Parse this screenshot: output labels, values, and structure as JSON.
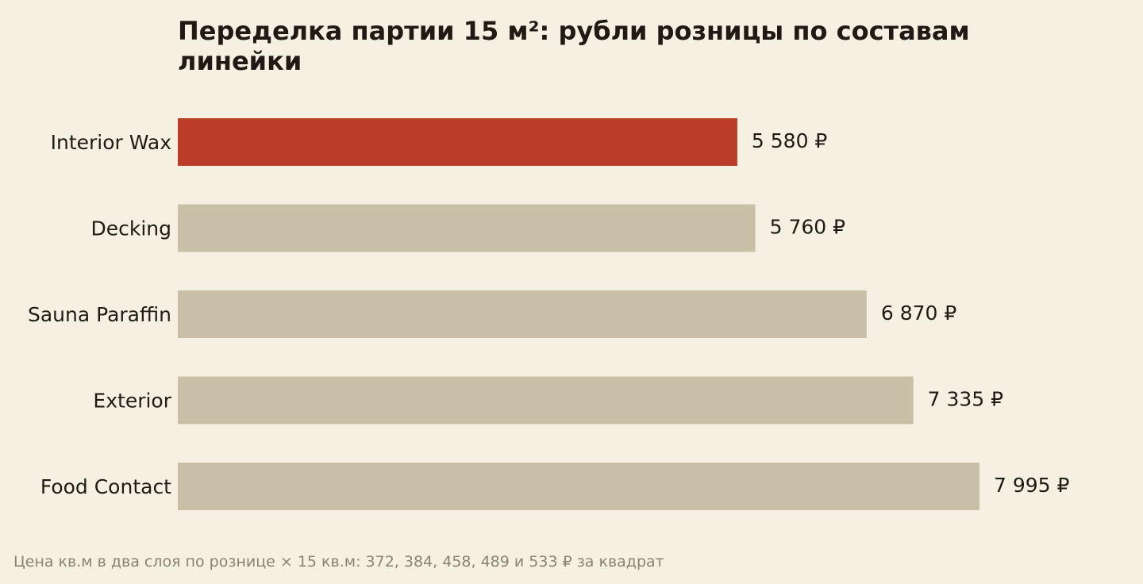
{
  "chart_data": {
    "type": "bar",
    "orientation": "horizontal",
    "title": "Переделка партии 15 м²: рубли розницы по составам линейки",
    "categories": [
      "Interior Wax",
      "Decking",
      "Sauna Paraffin",
      "Exterior",
      "Food Contact"
    ],
    "values": [
      5580,
      5760,
      6870,
      7335,
      7995
    ],
    "value_labels": [
      "5 580 ₽",
      "5 760 ₽",
      "6 870 ₽",
      "7 335 ₽",
      "7 995 ₽"
    ],
    "highlight_category": "Interior Wax",
    "xlim": [
      0,
      7995
    ],
    "grid": false,
    "axes_visible": false,
    "colors": {
      "highlight": "#bb3d28",
      "default": "#c9bfa7",
      "background": "#f6f0e3",
      "text": "#1f1a14",
      "footnote": "#8a8276"
    }
  },
  "footnote": "Цена кв.м в два слоя по рознице × 15 кв.м: 372, 384, 458, 489 и 533 ₽ за квадрат"
}
